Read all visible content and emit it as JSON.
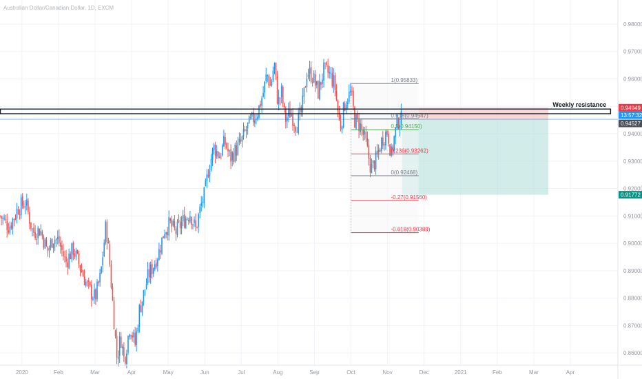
{
  "chart_title": "Australian Dollar/Canadian Dollar, 1D, EXCM",
  "colors": {
    "up": "#2196f3",
    "down": "#ef5350",
    "fib_gray": "#787b86",
    "fib_green": "#4caf50",
    "fib_red": "#f23645",
    "target_zone": "#b2dfdb",
    "stop_zone": "#f7c9c9",
    "current_price": "#2196f3",
    "resistance_box": "#131722"
  },
  "chart_data": {
    "type": "candlestick",
    "title": "Australian Dollar/Canadian Dollar, 1D, EXCM",
    "y_ticks": [
      0.98,
      0.97,
      0.96,
      0.95,
      0.94,
      0.93,
      0.92,
      0.91,
      0.9,
      0.89,
      0.88,
      0.87,
      0.86
    ],
    "y_tick_labels": [
      "0.98000",
      "0.97000",
      "0.96000",
      "0.95000",
      "0.94000",
      "0.93000",
      "0.92000",
      "0.91000",
      "0.90000",
      "0.89000",
      "0.88000",
      "0.87000",
      "0.86000"
    ],
    "ylim": [
      0.8555,
      0.9888
    ],
    "x_labels": [
      "2020",
      "Feb",
      "Mar",
      "Apr",
      "May",
      "Jun",
      "Jul",
      "Aug",
      "Sep",
      "Oct",
      "Nov",
      "Dec",
      "2021",
      "Feb",
      "Mar",
      "Apr"
    ],
    "x_months": [
      0,
      1,
      2,
      3,
      4,
      5,
      6,
      7,
      8,
      9,
      10,
      11,
      12,
      13,
      14,
      15
    ],
    "xlim_months": [
      -0.6,
      16.3
    ],
    "candle_anchors": [
      [
        -0.6,
        0.91
      ],
      [
        -0.35,
        0.906
      ],
      [
        -0.1,
        0.913
      ],
      [
        0.1,
        0.915
      ],
      [
        0.3,
        0.904
      ],
      [
        0.5,
        0.905
      ],
      [
        0.7,
        0.897
      ],
      [
        0.85,
        0.902
      ],
      [
        1.0,
        0.901
      ],
      [
        1.2,
        0.893
      ],
      [
        1.4,
        0.898
      ],
      [
        1.6,
        0.891
      ],
      [
        1.8,
        0.884
      ],
      [
        2.0,
        0.88
      ],
      [
        2.15,
        0.888
      ],
      [
        2.3,
        0.907
      ],
      [
        2.4,
        0.893
      ],
      [
        2.5,
        0.875
      ],
      [
        2.6,
        0.858
      ],
      [
        2.7,
        0.866
      ],
      [
        2.8,
        0.857
      ],
      [
        2.95,
        0.87
      ],
      [
        3.1,
        0.863
      ],
      [
        3.2,
        0.875
      ],
      [
        3.3,
        0.88
      ],
      [
        3.45,
        0.888
      ],
      [
        3.6,
        0.892
      ],
      [
        3.75,
        0.897
      ],
      [
        3.9,
        0.905
      ],
      [
        4.05,
        0.907
      ],
      [
        4.2,
        0.904
      ],
      [
        4.4,
        0.908
      ],
      [
        4.6,
        0.911
      ],
      [
        4.75,
        0.905
      ],
      [
        4.9,
        0.914
      ],
      [
        5.0,
        0.918
      ],
      [
        5.1,
        0.927
      ],
      [
        5.25,
        0.935
      ],
      [
        5.4,
        0.932
      ],
      [
        5.55,
        0.937
      ],
      [
        5.7,
        0.931
      ],
      [
        5.85,
        0.934
      ],
      [
        6.0,
        0.937
      ],
      [
        6.15,
        0.942
      ],
      [
        6.3,
        0.945
      ],
      [
        6.45,
        0.948
      ],
      [
        6.6,
        0.955
      ],
      [
        6.7,
        0.962
      ],
      [
        6.8,
        0.957
      ],
      [
        6.9,
        0.966
      ],
      [
        7.0,
        0.951
      ],
      [
        7.1,
        0.955
      ],
      [
        7.2,
        0.945
      ],
      [
        7.35,
        0.948
      ],
      [
        7.5,
        0.943
      ],
      [
        7.65,
        0.948
      ],
      [
        7.8,
        0.963
      ],
      [
        7.95,
        0.961
      ],
      [
        8.1,
        0.955
      ],
      [
        8.25,
        0.963
      ],
      [
        8.4,
        0.962
      ],
      [
        8.55,
        0.958
      ],
      [
        8.7,
        0.942
      ],
      [
        8.85,
        0.952
      ],
      [
        9.0,
        0.955
      ],
      [
        9.1,
        0.945
      ],
      [
        9.25,
        0.943
      ],
      [
        9.4,
        0.937
      ],
      [
        9.55,
        0.927
      ],
      [
        9.7,
        0.931
      ],
      [
        9.85,
        0.938
      ],
      [
        10.0,
        0.941
      ],
      [
        10.1,
        0.932
      ],
      [
        10.2,
        0.94
      ],
      [
        10.3,
        0.945
      ],
      [
        10.4,
        0.9453
      ]
    ],
    "resistance": {
      "label": "Weekly resistance",
      "low": 0.9473,
      "high": 0.949,
      "x_end_month": 16.1
    },
    "fibonacci": {
      "x_start_month": 9.0,
      "x_end_month": 10.85,
      "levels": [
        {
          "label": "1(0.95833)",
          "price": 0.95833,
          "color": "gray"
        },
        {
          "label": "0.618(0.94547)",
          "price": 0.94547,
          "color": "gray"
        },
        {
          "label": "0.5(0.94150)",
          "price": 0.9415,
          "color": "green"
        },
        {
          "label": "0.236(0.93262)",
          "price": 0.93262,
          "color": "red"
        },
        {
          "label": "0(0.92468)",
          "price": 0.92468,
          "color": "gray"
        },
        {
          "label": "-0.27(0.91560)",
          "price": 0.9156,
          "color": "red"
        },
        {
          "label": "-0.618(0.90389)",
          "price": 0.90389,
          "color": "red"
        }
      ]
    },
    "position": {
      "x_start_month": 10.4,
      "x_end_month": 14.4,
      "entry": 0.94527,
      "stop": 0.94949,
      "target": 0.91772
    },
    "current_price": 0.94527,
    "price_badges": [
      {
        "label": "0.94949",
        "price": 0.94949,
        "color": "#f23645"
      },
      {
        "label": "13:57:32",
        "price": 0.94527,
        "color": "#2196f3",
        "offset": -1
      },
      {
        "label": "0.94527",
        "price": 0.94527,
        "color": "#4a4e58",
        "offset": 1
      },
      {
        "label": "0.91772",
        "price": 0.91772,
        "color": "#009688"
      }
    ]
  }
}
